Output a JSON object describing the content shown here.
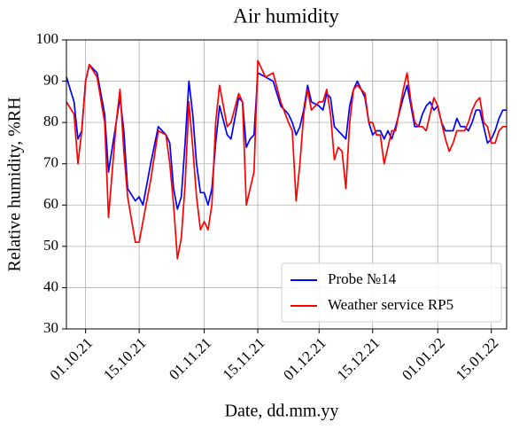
{
  "chart_data": {
    "type": "line",
    "title": "Air humidity",
    "xlabel": "Date, dd.mm.yy",
    "ylabel": "Relative humidity, %RH",
    "x": [
      "26.09.21",
      "28.09.21",
      "29.09.21",
      "30.09.21",
      "01.10.21",
      "02.10.21",
      "04.10.21",
      "06.10.21",
      "07.10.21",
      "09.10.21",
      "10.10.21",
      "11.10.21",
      "12.10.21",
      "14.10.21",
      "15.10.21",
      "16.10.21",
      "18.10.21",
      "20.10.21",
      "22.10.21",
      "23.10.21",
      "24.10.21",
      "25.10.21",
      "26.10.21",
      "27.10.21",
      "28.10.21",
      "29.10.21",
      "30.10.21",
      "31.10.21",
      "01.11.21",
      "02.11.21",
      "03.11.21",
      "04.11.21",
      "05.11.21",
      "07.11.21",
      "08.11.21",
      "10.11.21",
      "11.11.21",
      "12.11.21",
      "13.11.21",
      "14.11.21",
      "15.11.21",
      "17.11.21",
      "19.11.21",
      "21.11.21",
      "23.11.21",
      "24.11.21",
      "25.11.21",
      "26.11.21",
      "27.11.21",
      "28.11.21",
      "29.11.21",
      "01.12.21",
      "02.12.21",
      "03.12.21",
      "04.12.21",
      "05.12.21",
      "06.12.21",
      "07.12.21",
      "08.12.21",
      "09.12.21",
      "10.12.21",
      "11.12.21",
      "13.12.21",
      "14.12.21",
      "15.12.21",
      "16.12.21",
      "17.12.21",
      "18.12.21",
      "19.12.21",
      "20.12.21",
      "21.12.21",
      "23.12.21",
      "24.12.21",
      "25.12.21",
      "26.12.21",
      "27.12.21",
      "28.12.21",
      "29.12.21",
      "30.12.21",
      "31.12.21",
      "01.01.22",
      "02.01.22",
      "03.01.22",
      "04.01.22",
      "05.01.22",
      "06.01.22",
      "07.01.22",
      "08.01.22",
      "09.01.22",
      "10.01.22",
      "11.01.22",
      "12.01.22",
      "13.01.22",
      "14.01.22",
      "15.01.22",
      "16.01.22",
      "17.01.22",
      "18.01.22",
      "19.01.22"
    ],
    "series": [
      {
        "name": "Probe №14",
        "color": "#0000ff",
        "values": [
          91,
          85,
          76,
          78,
          90,
          94,
          92,
          82,
          68,
          80,
          86,
          78,
          64,
          61,
          62,
          60,
          70,
          79,
          77,
          75,
          64,
          59,
          62,
          75,
          90,
          82,
          70,
          63,
          63,
          60,
          64,
          75,
          84,
          77,
          76,
          86,
          85,
          74,
          76,
          77,
          92,
          91,
          90,
          84,
          82,
          80,
          77,
          79,
          83,
          89,
          85,
          84,
          83,
          87,
          86,
          79,
          78,
          77,
          76,
          84,
          88,
          90,
          86,
          80,
          77,
          78,
          78,
          76,
          78,
          76,
          79,
          86,
          89,
          84,
          79,
          79,
          82,
          84,
          85,
          83,
          84,
          80,
          78,
          78,
          78,
          81,
          79,
          79,
          78,
          80,
          83,
          83,
          79,
          75,
          76,
          78,
          81,
          83,
          83
        ]
      },
      {
        "name": "Weather service RP5",
        "color": "#ff0000",
        "values": [
          85,
          82,
          70,
          78,
          90,
          94,
          91,
          80,
          57,
          80,
          88,
          73,
          62,
          51,
          51,
          56,
          66,
          78,
          77,
          70,
          60,
          47,
          52,
          65,
          85,
          74,
          62,
          54,
          56,
          54,
          60,
          80,
          89,
          79,
          80,
          87,
          85,
          60,
          64,
          68,
          95,
          91,
          92,
          85,
          80,
          78,
          61,
          70,
          82,
          88,
          83,
          85,
          85,
          88,
          82,
          71,
          74,
          73,
          64,
          80,
          88,
          89,
          87,
          80,
          80,
          77,
          77,
          70,
          74,
          78,
          78,
          88,
          92,
          85,
          80,
          79,
          79,
          78,
          82,
          86,
          84,
          80,
          76,
          73,
          75,
          78,
          78,
          78,
          80,
          83,
          85,
          86,
          80,
          79,
          75,
          75,
          78,
          79,
          79
        ]
      }
    ],
    "xlim": [
      "26.09.21",
      "19.01.22"
    ],
    "xticks": [
      "01.10.21",
      "15.10.21",
      "01.11.21",
      "15.11.21",
      "01.12.21",
      "15.12.21",
      "01.01.22",
      "15.01.22"
    ],
    "ylim": [
      30,
      100
    ],
    "yticks": [
      30,
      40,
      50,
      60,
      70,
      80,
      90,
      100
    ],
    "grid": true,
    "legend": "lower right"
  }
}
